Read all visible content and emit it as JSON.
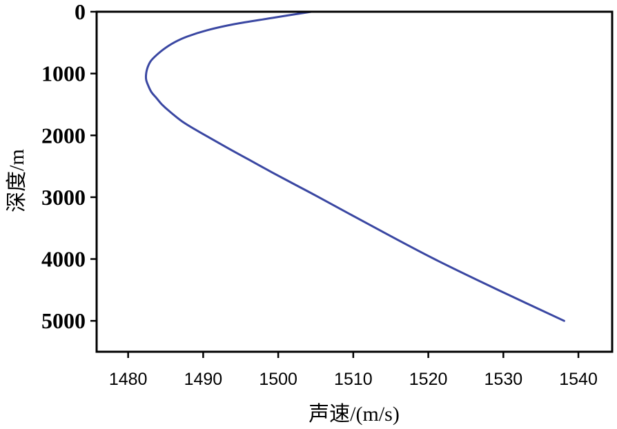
{
  "chart_data": {
    "type": "line",
    "xlabel": "声速/(m/s)",
    "ylabel": "深度/m",
    "xlim": [
      1475.8,
      1544.5
    ],
    "ylim": [
      0,
      5500
    ],
    "y_inverted": true,
    "xticks": [
      1480,
      1490,
      1500,
      1510,
      1520,
      1530,
      1540
    ],
    "yticks": [
      0,
      1000,
      2000,
      3000,
      4000,
      5000
    ],
    "grid": false,
    "legend": false,
    "series": [
      {
        "x": [
          1504.4,
          1499.2,
          1494.2,
          1490.5,
          1487.9,
          1486.1,
          1484.8,
          1483.8,
          1483.0,
          1482.6,
          1482.4,
          1482.4,
          1482.7,
          1483.1,
          1483.8,
          1484.5,
          1485.4,
          1487.5,
          1490.3,
          1493.2,
          1496.2,
          1499.2,
          1502.3,
          1505.4,
          1513.0,
          1520.8,
          1529.3,
          1538.1
        ],
        "y": [
          0,
          100,
          200,
          300,
          400,
          500,
          600,
          700,
          800,
          900,
          1000,
          1100,
          1200,
          1300,
          1400,
          1500,
          1600,
          1800,
          2000,
          2200,
          2400,
          2600,
          2800,
          3000,
          3500,
          4000,
          4500,
          5000
        ]
      }
    ],
    "colors": {
      "line": "#3a47a2",
      "axis": "#000000",
      "background": "#ffffff"
    }
  }
}
